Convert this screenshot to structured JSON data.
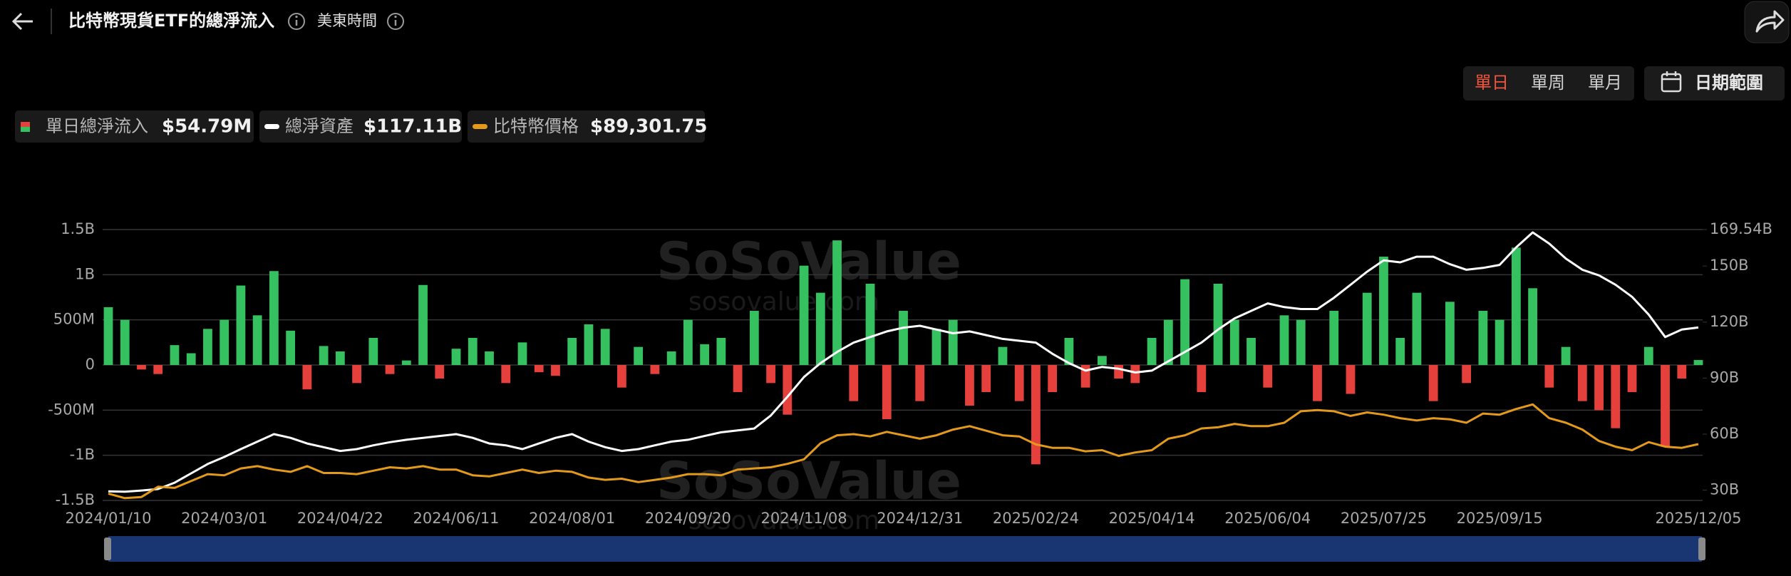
{
  "header": {
    "title": "比特幣現貨ETF的總淨流入",
    "timezone": "美東時間"
  },
  "controls": {
    "periods": [
      "單日",
      "單周",
      "單月"
    ],
    "date_range": "日期範圍"
  },
  "watermark": {
    "brand": "SoSoValue",
    "site": "sosovalue.com"
  },
  "chart_data": {
    "type": "combo",
    "categories": [
      "2024/01/10",
      null,
      null,
      null,
      null,
      null,
      null,
      "2024/03/01",
      null,
      null,
      null,
      null,
      null,
      null,
      "2024/04/22",
      null,
      null,
      null,
      null,
      null,
      null,
      "2024/06/11",
      null,
      null,
      null,
      null,
      null,
      null,
      "2024/08/01",
      null,
      null,
      null,
      null,
      null,
      null,
      "2024/09/20",
      null,
      null,
      null,
      null,
      null,
      null,
      "2024/11/08",
      null,
      null,
      null,
      null,
      null,
      null,
      "2024/12/31",
      null,
      null,
      null,
      null,
      null,
      null,
      "2025/02/24",
      null,
      null,
      null,
      null,
      null,
      null,
      "2025/04/14",
      null,
      null,
      null,
      null,
      null,
      null,
      "2025/06/04",
      null,
      null,
      null,
      null,
      null,
      null,
      "2025/07/25",
      null,
      null,
      null,
      null,
      null,
      null,
      "2025/09/15",
      null,
      null,
      null,
      null,
      null,
      null,
      null,
      null,
      null,
      null,
      null,
      "2025/12/05"
    ],
    "series": [
      {
        "name": "單日總淨流入",
        "type": "bar",
        "color": "#35c15f",
        "negative_color": "#e5403c",
        "latest_label": "$54.79M",
        "values": [
          640000000.0,
          500000000.0,
          -50000000.0,
          -100000000.0,
          220000000.0,
          130000000.0,
          400000000.0,
          500000000.0,
          880000000.0,
          550000000.0,
          1040000000.0,
          380000000.0,
          -270000000.0,
          210000000.0,
          150000000.0,
          -200000000.0,
          300000000.0,
          -100000000.0,
          50000000.0,
          886000000.0,
          -150000000.0,
          180000000.0,
          300000000.0,
          150000000.0,
          -200000000.0,
          250000000.0,
          -80000000.0,
          -120000000.0,
          300000000.0,
          450000000.0,
          400000000.0,
          -250000000.0,
          200000000.0,
          -100000000.0,
          150000000.0,
          500000000.0,
          230000000.0,
          300000000.0,
          -300000000.0,
          600000000.0,
          -200000000.0,
          -550000000.0,
          1100000000.0,
          800000000.0,
          1380000000.0,
          -400000000.0,
          900000000.0,
          -600000000.0,
          600000000.0,
          -400000000.0,
          400000000.0,
          500000000.0,
          -450000000.0,
          -300000000.0,
          200000000.0,
          -400000000.0,
          -1100000000.0,
          -300000000.0,
          300000000.0,
          -250000000.0,
          100000000.0,
          -150000000.0,
          -200000000.0,
          300000000.0,
          500000000.0,
          950000000.0,
          -300000000.0,
          900000000.0,
          500000000.0,
          300000000.0,
          -250000000.0,
          550000000.0,
          500000000.0,
          -400000000.0,
          600000000.0,
          -320000000.0,
          800000000.0,
          1200000000.0,
          300000000.0,
          800000000.0,
          -400000000.0,
          700000000.0,
          -200000000.0,
          600000000.0,
          500000000.0,
          1300000000.0,
          850000000.0,
          -250000000.0,
          200000000.0,
          -400000000.0,
          -500000000.0,
          -700000000.0,
          -300000000.0,
          200000000.0,
          -900000000.0,
          -150000000.0,
          54790000.0
        ]
      },
      {
        "name": "總淨資產",
        "type": "line",
        "axis": "y2",
        "color": "#ffffff",
        "latest_label": "$117.11B",
        "values": [
          29400000000.0,
          29200000000.0,
          29800000000.0,
          30600000000.0,
          34000000000.0,
          39000000000.0,
          44000000000.0,
          47800000000.0,
          52000000000.0,
          56000000000.0,
          60000000000.0,
          58000000000.0,
          55000000000.0,
          53000000000.0,
          51000000000.0,
          52000000000.0,
          54000000000.0,
          55700000000.0,
          57000000000.0,
          58000000000.0,
          59000000000.0,
          60000000000.0,
          58000000000.0,
          55000000000.0,
          54000000000.0,
          52000000000.0,
          55000000000.0,
          58000000000.0,
          60000000000.0,
          56000000000.0,
          53000000000.0,
          51000000000.0,
          52000000000.0,
          54000000000.0,
          56000000000.0,
          57000000000.0,
          59000000000.0,
          61000000000.0,
          62000000000.0,
          63000000000.0,
          70000000000.0,
          80000000000.0,
          90600000000.0,
          98000000000.0,
          104000000000.0,
          109000000000.0,
          112000000000.0,
          115000000000.0,
          117000000000.0,
          118000000000.0,
          116000000000.0,
          114000000000.0,
          115000000000.0,
          113000000000.0,
          111000000000.0,
          110000000000.0,
          109000000000.0,
          103000000000.0,
          98000000000.0,
          94000000000.0,
          96000000000.0,
          95000000000.0,
          93000000000.0,
          94000000000.0,
          99000000000.0,
          104000000000.0,
          109000000000.0,
          116000000000.0,
          122000000000.0,
          126000000000.0,
          130000000000.0,
          128000000000.0,
          127000000000.0,
          127000000000.0,
          133000000000.0,
          140000000000.0,
          147000000000.0,
          153000000000.0,
          152000000000.0,
          155000000000.0,
          155000000000.0,
          151000000000.0,
          148000000000.0,
          149000000000.0,
          150600000000.0,
          160000000000.0,
          168000000000.0,
          162000000000.0,
          154000000000.0,
          148000000000.0,
          145000000000.0,
          140000000000.0,
          133500000000.0,
          124000000000.0,
          112000000000.0,
          116000000000.0,
          117110000000.0
        ]
      },
      {
        "name": "比特幣價格",
        "type": "line",
        "axis": "y3",
        "color": "#e39a1c",
        "latest_label": "$89,301.75",
        "values": [
          46000,
          42000,
          43000,
          52000,
          51000,
          57000,
          63000,
          62000,
          68000,
          70000,
          67000,
          65000,
          70000,
          64000,
          64000,
          63000,
          66000,
          69000,
          68000,
          70000,
          67000,
          67000,
          62000,
          61000,
          64000,
          67000,
          64000,
          66000,
          65000,
          60000,
          58000,
          59000,
          56000,
          58000,
          60000,
          63000,
          63000,
          62000,
          67000,
          68000,
          69000,
          72000,
          76000,
          90000,
          97000,
          98000,
          96000,
          100000,
          97000,
          94000,
          97000,
          102000,
          105000,
          101000,
          97000,
          96000,
          89000,
          86000,
          86000,
          83000,
          84000,
          79000,
          82000,
          84000,
          94000,
          97000,
          103000,
          104000,
          107000,
          105000,
          105000,
          108000,
          118000,
          119000,
          118000,
          114000,
          117000,
          115000,
          112000,
          110000,
          112000,
          111000,
          108000,
          116000,
          115000,
          120000,
          124000,
          112000,
          108000,
          102000,
          92000,
          87000,
          84000,
          91000,
          87000,
          86000,
          89301.75
        ]
      }
    ],
    "ylim": [
      -1500000000.0,
      1500000000.0
    ],
    "yticks": [
      {
        "value": 1500000000.0,
        "label": "1.5B"
      },
      {
        "value": 1000000000.0,
        "label": "1B"
      },
      {
        "value": 500000000.0,
        "label": "500M"
      },
      0,
      {
        "value": -500000000.0,
        "label": "-500M"
      },
      {
        "value": -1000000000.0,
        "label": "-1B"
      },
      {
        "value": -1500000000.0,
        "label": "-1.5B"
      }
    ],
    "y2lim": [
      24500000000.0,
      169540000000.0
    ],
    "y2ticks": [
      {
        "value": 169540000000.0,
        "label": "169.54B"
      },
      {
        "value": 150000000000.0,
        "label": "150B"
      },
      {
        "value": 120000000000.0,
        "label": "120B"
      },
      {
        "value": 90000000000.0,
        "label": "90B"
      },
      {
        "value": 60000000000.0,
        "label": "60B"
      },
      {
        "value": 30000000000.0,
        "label": "30B"
      }
    ],
    "y3lim": [
      40000,
      277000
    ],
    "grid": true
  }
}
